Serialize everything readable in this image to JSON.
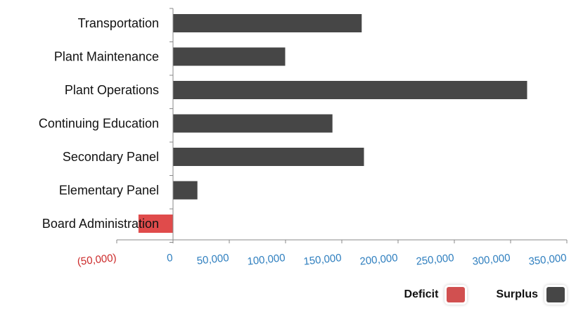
{
  "chart_data": {
    "type": "bar",
    "orientation": "horizontal",
    "categories": [
      "Transportation",
      "Plant Maintenance",
      "Plant Operations",
      "Continuing Education",
      "Secondary Panel",
      "Elementary Panel",
      "Board Administration"
    ],
    "values": [
      168000,
      100000,
      315000,
      142000,
      170000,
      22000,
      -31000
    ],
    "xlim": [
      -50000,
      350000
    ],
    "x_ticks": [
      -50000,
      0,
      50000,
      100000,
      150000,
      200000,
      250000,
      300000,
      350000
    ],
    "x_tick_labels": [
      "(50,000)",
      "0",
      "50,000",
      "100,000",
      "150,000",
      "200,000",
      "250,000",
      "300,000",
      "350,000"
    ],
    "title": "",
    "xlabel": "",
    "ylabel": "",
    "grid": false,
    "legend_position": "bottom-right",
    "legend": [
      {
        "label": "Deficit",
        "color": "#d15050"
      },
      {
        "label": "Surplus",
        "color": "#464646"
      }
    ],
    "colors": {
      "positive_bar": "#464646",
      "negative_bar": "#e04b4b",
      "positive_tick": "#2f7fbf",
      "negative_tick": "#cc2a2a",
      "axis": "#888888"
    }
  }
}
